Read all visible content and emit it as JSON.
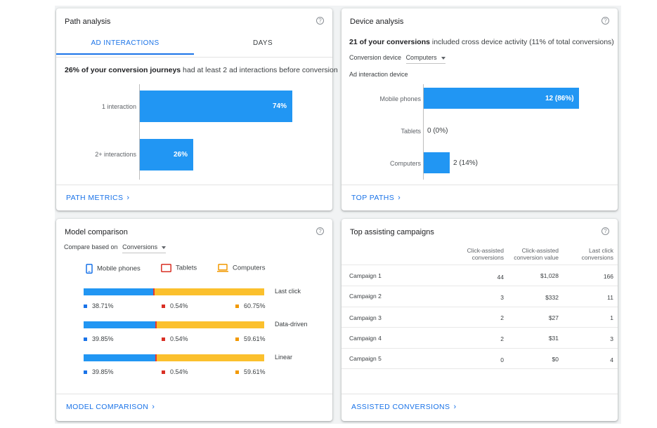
{
  "path_analysis": {
    "title": "Path analysis",
    "tabs": [
      "AD INTERACTIONS",
      "DAYS"
    ],
    "summary_bold": "26% of your conversion journeys",
    "summary_rest": " had at least 2 ad interactions before conversion",
    "bars": [
      {
        "label": "1 interaction",
        "value": 74,
        "display": "74%"
      },
      {
        "label": "2+ interactions",
        "value": 26,
        "display": "26%"
      }
    ],
    "footer": "PATH METRICS"
  },
  "device_analysis": {
    "title": "Device analysis",
    "summary_bold": "21 of your conversions",
    "summary_rest": " included cross device activity (11% of total conversions)",
    "conversion_device_label": "Conversion device",
    "conversion_device_value": "Computers",
    "ad_interaction_label": "Ad interaction device",
    "bars": [
      {
        "label": "Mobile phones",
        "value": 12,
        "display": "12 (86%)"
      },
      {
        "label": "Tablets",
        "value": 0,
        "display": "0 (0%)"
      },
      {
        "label": "Computers",
        "value": 2,
        "display": "2 (14%)"
      }
    ],
    "footer": "TOP PATHS"
  },
  "model_comparison": {
    "title": "Model comparison",
    "compare_label": "Compare based on",
    "compare_value": "Conversions",
    "legend": [
      {
        "name": "Mobile phones",
        "icon": "mobile-phone-icon",
        "color": "#1a73e8"
      },
      {
        "name": "Tablets",
        "icon": "tablet-icon",
        "color": "#d93025"
      },
      {
        "name": "Computers",
        "icon": "computer-icon",
        "color": "#f29900"
      }
    ],
    "models": [
      {
        "name": "Last click",
        "values": [
          38.71,
          0.54,
          60.75
        ],
        "labels": [
          "38.71%",
          "0.54%",
          "60.75%"
        ]
      },
      {
        "name": "Data-driven",
        "values": [
          39.85,
          0.54,
          59.61
        ],
        "labels": [
          "39.85%",
          "0.54%",
          "59.61%"
        ]
      },
      {
        "name": "Linear",
        "values": [
          39.85,
          0.54,
          59.61
        ],
        "labels": [
          "39.85%",
          "0.54%",
          "59.61%"
        ]
      }
    ],
    "segment_colors": [
      "#2196f3",
      "#e53935",
      "#fbc02d"
    ],
    "footer": "MODEL COMPARISON"
  },
  "top_assisting": {
    "title": "Top assisting campaigns",
    "headers": [
      [
        "Click-assisted",
        "conversions"
      ],
      [
        "Click-assisted",
        "conversion value"
      ],
      [
        "Last click",
        "conversions"
      ]
    ],
    "rows": [
      {
        "name": "Campaign 1",
        "assisted": "44",
        "value": "$1,028",
        "last": "166"
      },
      {
        "name": "Campaign 2",
        "assisted": "3",
        "value": "$332",
        "last": "11"
      },
      {
        "name": "Campaign 3",
        "assisted": "2",
        "value": "$27",
        "last": "1"
      },
      {
        "name": "Campaign 4",
        "assisted": "2",
        "value": "$31",
        "last": "3"
      },
      {
        "name": "Campaign 5",
        "assisted": "0",
        "value": "$0",
        "last": "4"
      }
    ],
    "footer": "ASSISTED CONVERSIONS"
  }
}
